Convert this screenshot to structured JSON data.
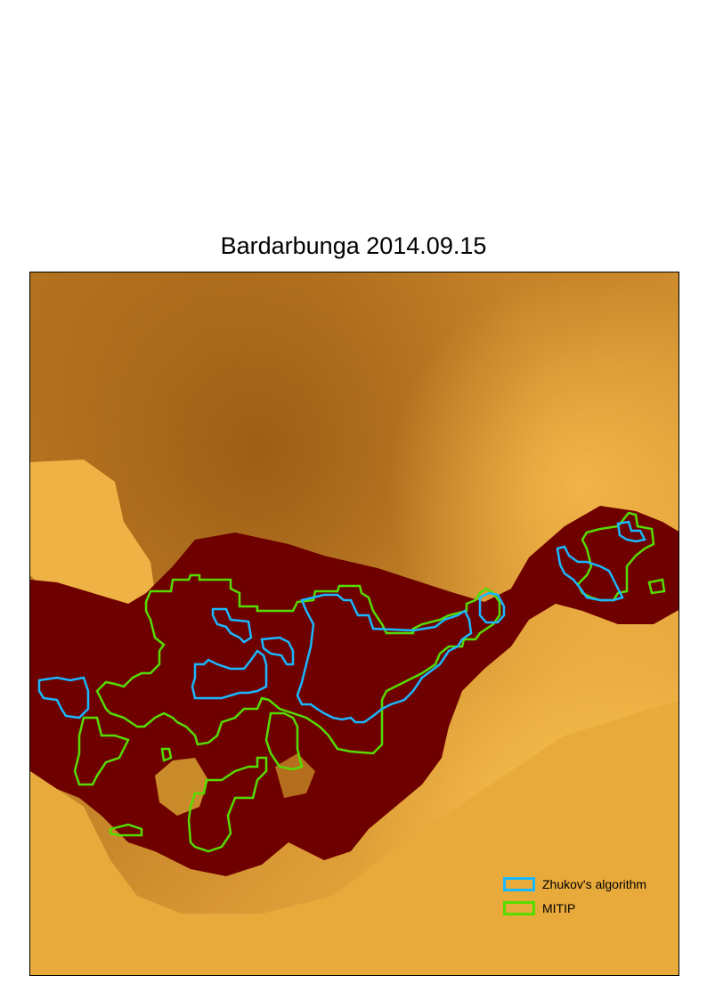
{
  "title": "Bardarbunga 2014.09.15",
  "colors": {
    "background_light": "#f0b040",
    "background_mid": "#b87a24",
    "lava_dark": "#6e0000",
    "zhukov_outline": "#1ab8ff",
    "mitip_outline": "#55dd00"
  },
  "legend": {
    "items": [
      {
        "label": "Zhukov's algorithm",
        "color": "#1ab8ff"
      },
      {
        "label": "MITIP",
        "color": "#55dd00"
      }
    ]
  }
}
